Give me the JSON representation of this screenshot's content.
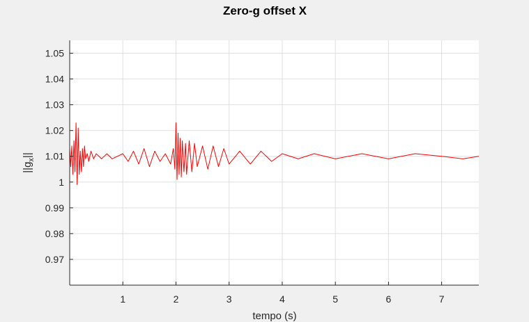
{
  "chart_data": {
    "type": "line",
    "title": "Zero-g offset X",
    "xlabel": "tempo (s)",
    "ylabel": {
      "base": "||g",
      "sub": "x",
      "close": "||"
    },
    "xlim": [
      0,
      7.7
    ],
    "ylim": [
      0.96,
      1.055
    ],
    "xticks": [
      1,
      2,
      3,
      4,
      5,
      6,
      7
    ],
    "xtick_labels": [
      "1",
      "2",
      "3",
      "4",
      "5",
      "6",
      "7"
    ],
    "yticks": [
      0.97,
      0.98,
      0.99,
      1.0,
      1.01,
      1.02,
      1.03,
      1.04,
      1.05
    ],
    "ytick_labels": [
      "0.97",
      "0.98",
      "0.99",
      "1",
      "1.01",
      "1.02",
      "1.03",
      "1.04",
      "1.05"
    ],
    "grid": true,
    "series": [
      {
        "color": "#ff0000",
        "x": [
          0.0,
          0.02,
          0.04,
          0.06,
          0.08,
          0.1,
          0.12,
          0.14,
          0.16,
          0.18,
          0.2,
          0.22,
          0.24,
          0.26,
          0.28,
          0.3,
          0.33,
          0.36,
          0.4,
          0.45,
          0.5,
          0.6,
          0.7,
          0.8,
          0.9,
          1.0,
          1.1,
          1.2,
          1.3,
          1.4,
          1.5,
          1.6,
          1.7,
          1.8,
          1.9,
          1.95,
          1.98,
          2.0,
          2.02,
          2.04,
          2.06,
          2.08,
          2.1,
          2.12,
          2.15,
          2.18,
          2.2,
          2.25,
          2.3,
          2.35,
          2.4,
          2.5,
          2.6,
          2.7,
          2.8,
          2.9,
          3.0,
          3.2,
          3.4,
          3.6,
          3.8,
          4.0,
          4.3,
          4.6,
          5.0,
          5.5,
          6.0,
          6.5,
          7.0,
          7.4,
          7.7
        ],
        "y": [
          1.013,
          1.006,
          1.014,
          1.003,
          1.016,
          1.004,
          1.023,
          0.999,
          1.021,
          1.003,
          1.012,
          1.004,
          1.013,
          1.006,
          1.014,
          1.009,
          1.011,
          1.008,
          1.012,
          1.009,
          1.011,
          1.009,
          1.011,
          1.009,
          1.01,
          1.011,
          1.008,
          1.012,
          1.007,
          1.013,
          1.006,
          1.012,
          1.008,
          1.011,
          1.007,
          1.013,
          1.005,
          1.023,
          1.001,
          1.019,
          1.003,
          1.017,
          1.002,
          1.016,
          1.004,
          1.015,
          1.003,
          1.016,
          1.004,
          1.015,
          1.006,
          1.014,
          1.005,
          1.014,
          1.006,
          1.013,
          1.007,
          1.012,
          1.007,
          1.012,
          1.008,
          1.011,
          1.009,
          1.011,
          1.009,
          1.011,
          1.009,
          1.011,
          1.01,
          1.009,
          1.01
        ]
      }
    ]
  }
}
